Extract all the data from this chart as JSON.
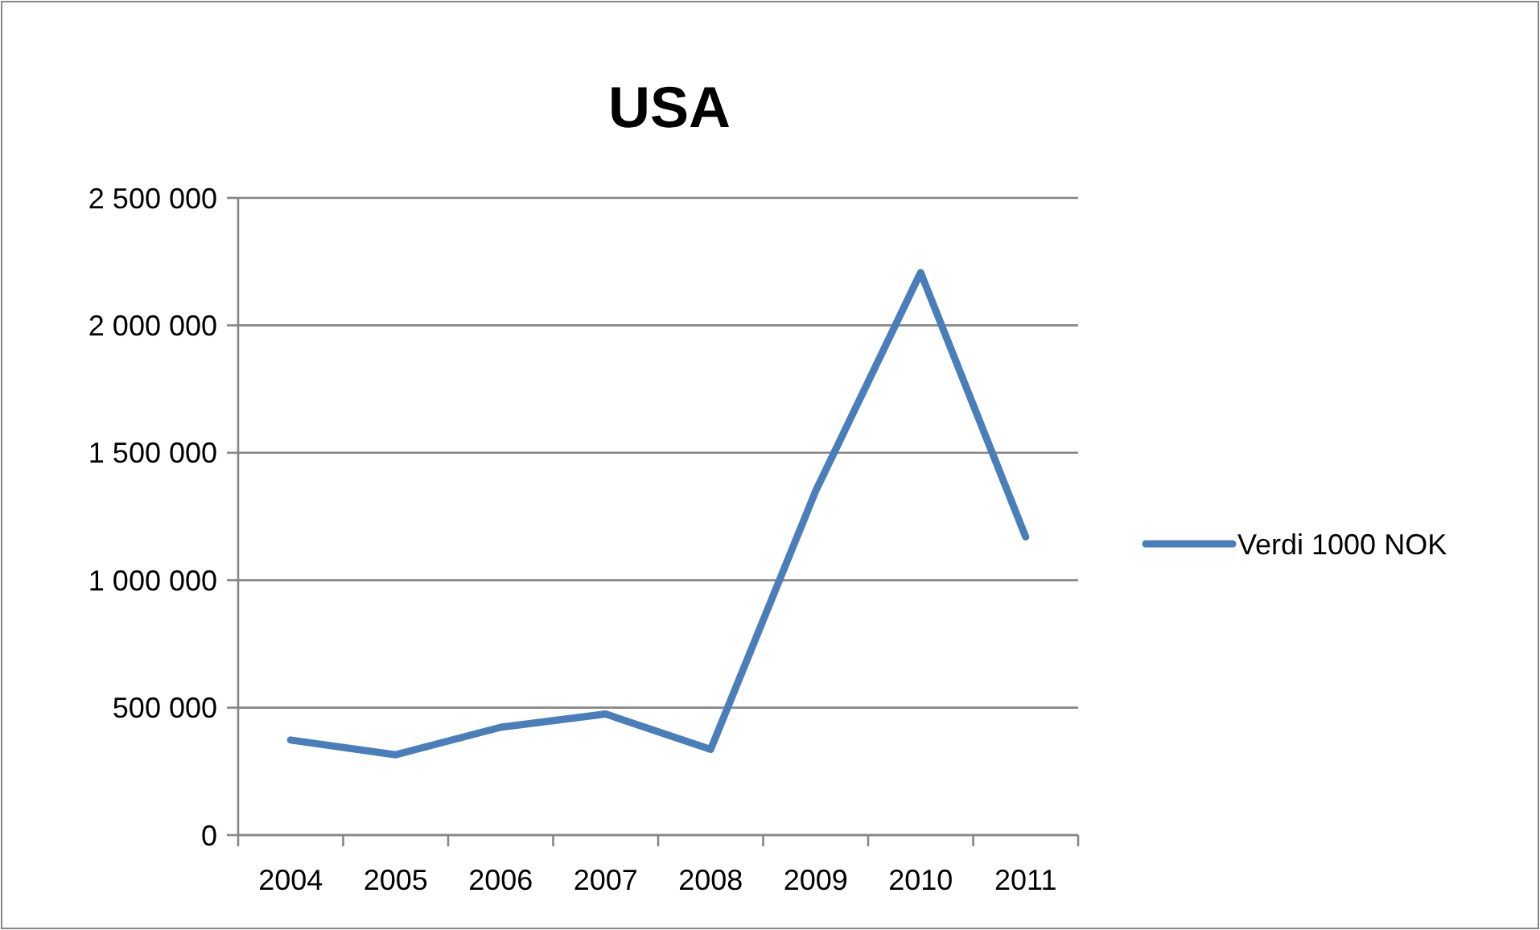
{
  "chart_data": {
    "type": "line",
    "title": "USA",
    "categories": [
      "2004",
      "2005",
      "2006",
      "2007",
      "2008",
      "2009",
      "2010",
      "2011"
    ],
    "series": [
      {
        "name": "Verdi 1000 NOK",
        "color": "#4a7ebb",
        "values": [
          373000,
          315000,
          423000,
          475000,
          336000,
          1350000,
          2207000,
          1170000
        ]
      }
    ],
    "ylim": [
      0,
      2500000
    ],
    "yticks": [
      {
        "value": 0,
        "label": "0"
      },
      {
        "value": 500000,
        "label": "500 000"
      },
      {
        "value": 1000000,
        "label": "1 000 000"
      },
      {
        "value": 1500000,
        "label": "1 500 000"
      },
      {
        "value": 2000000,
        "label": "2 000 000"
      },
      {
        "value": 2500000,
        "label": "2 500 000"
      }
    ],
    "grid": "y",
    "legend": "right",
    "marker": "none",
    "line_style": "solid"
  }
}
